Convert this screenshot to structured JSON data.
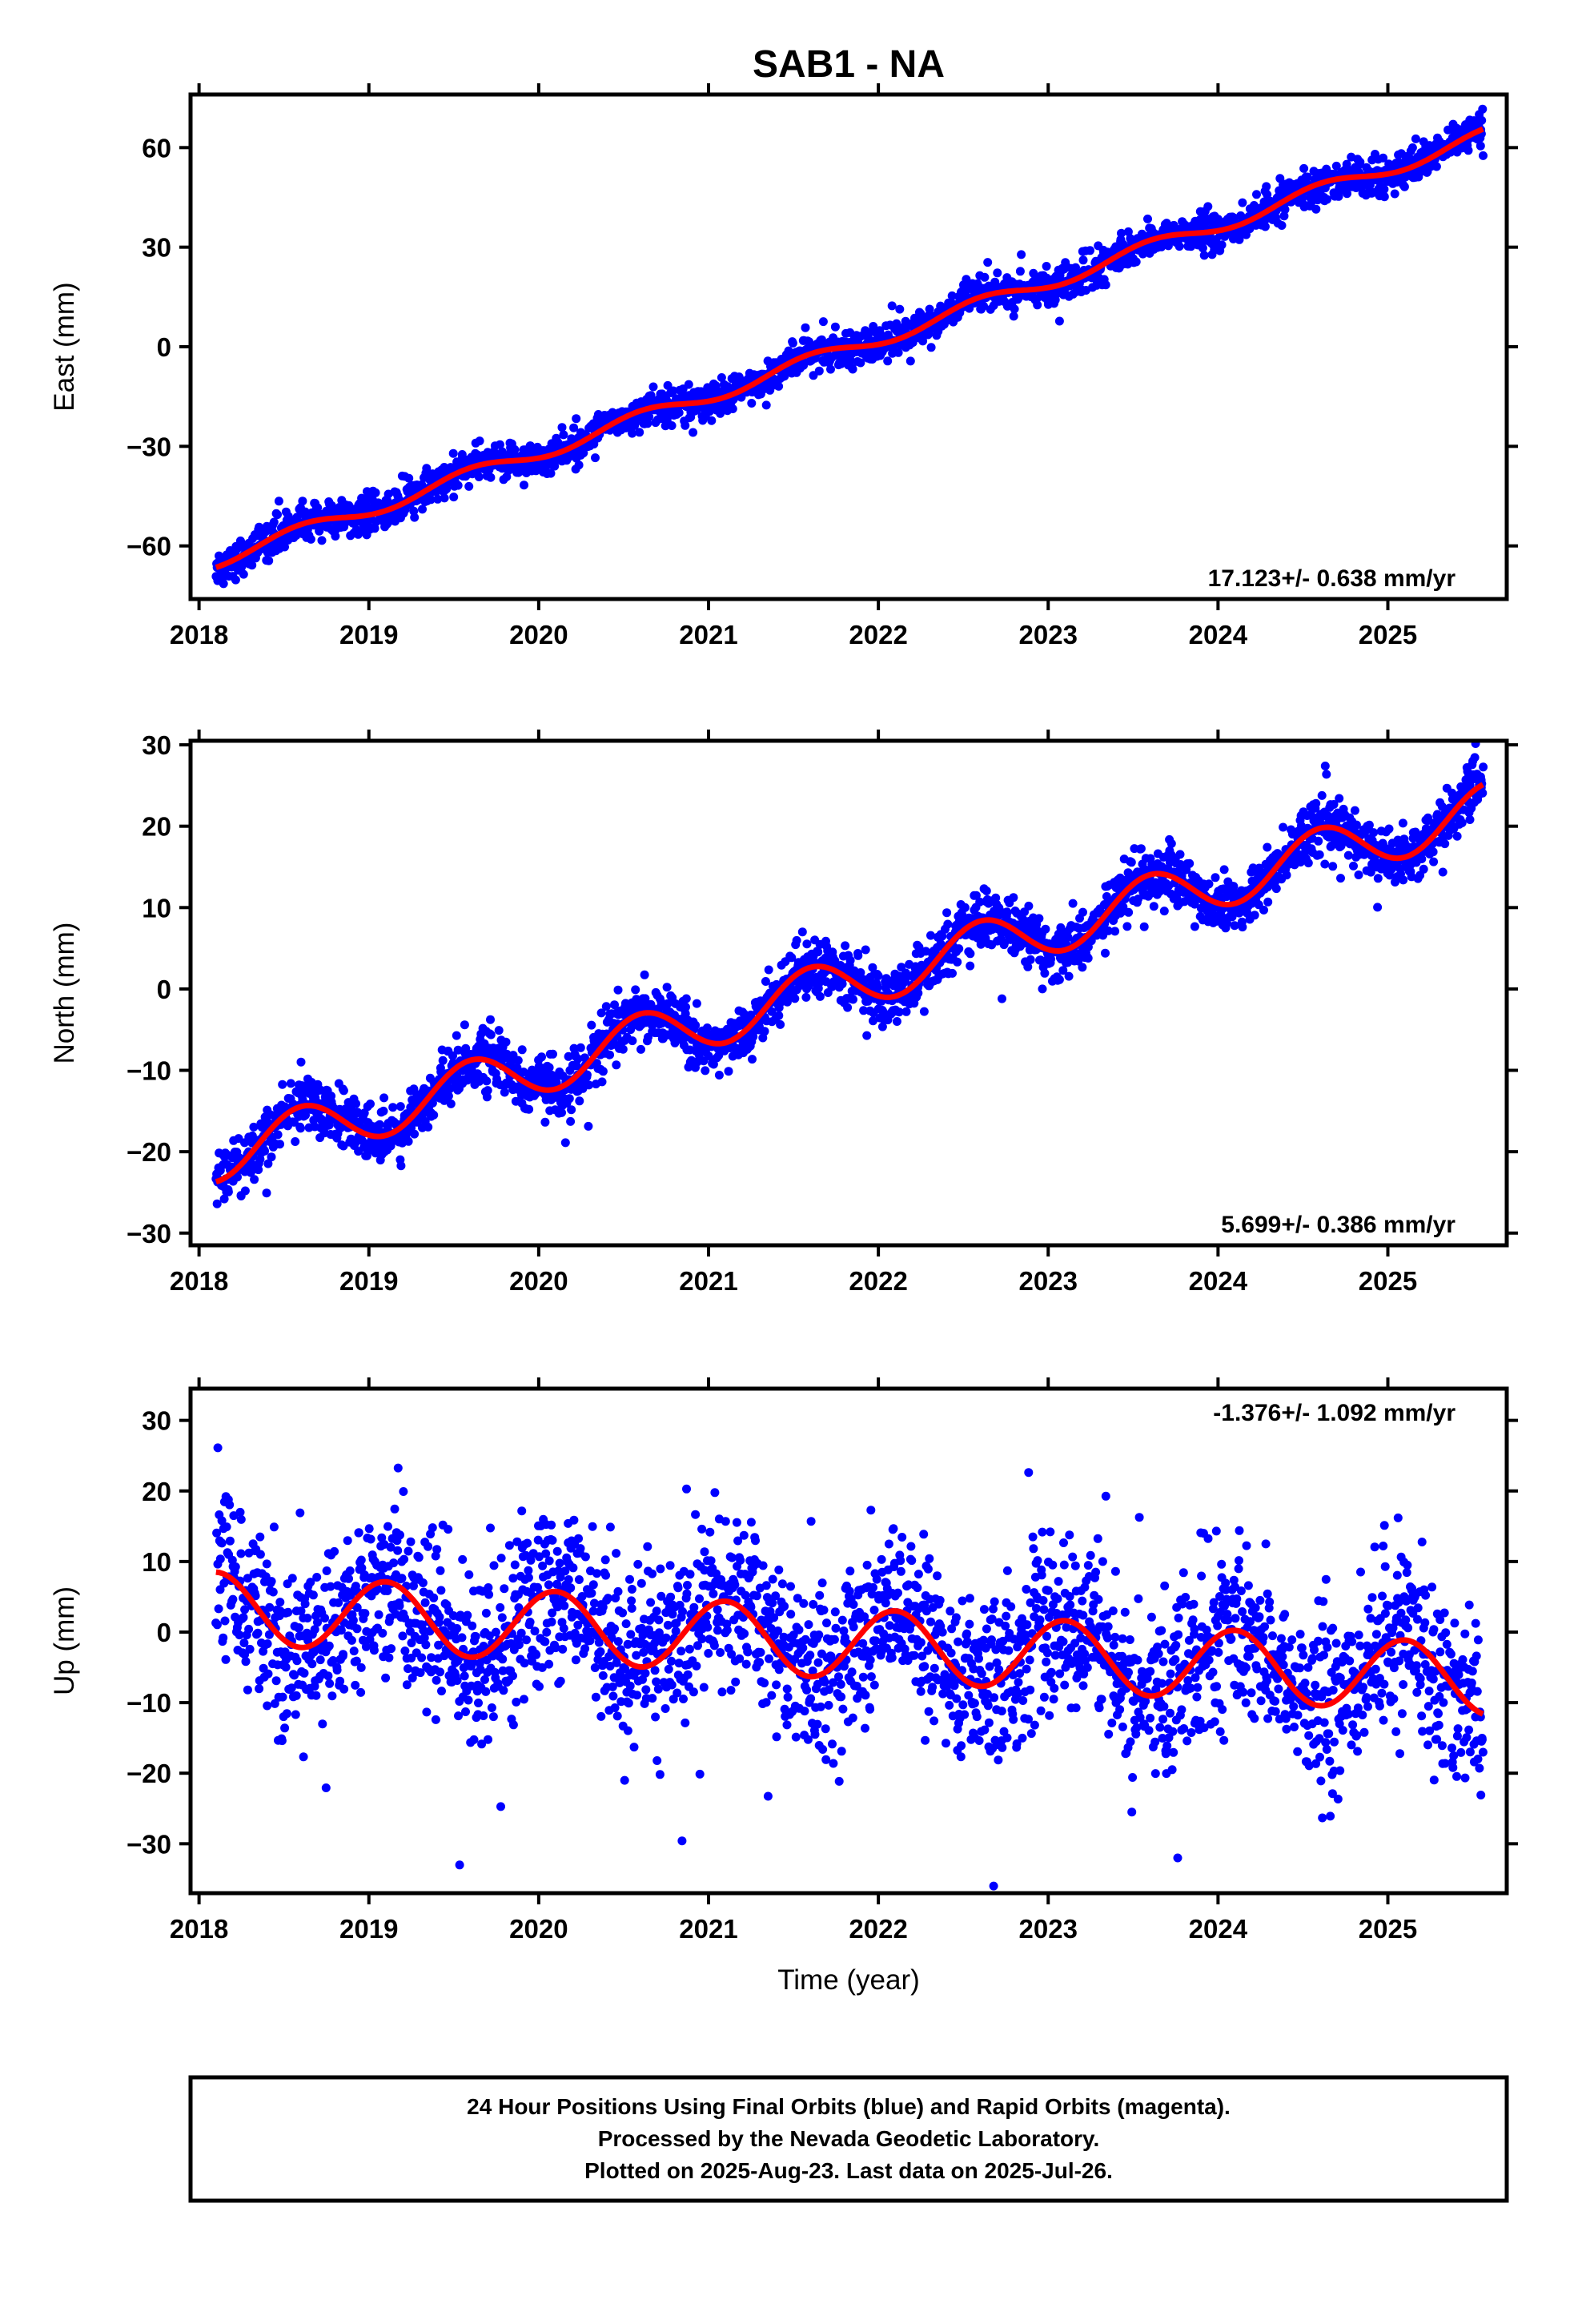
{
  "title": "SAB1 - NA",
  "colors": {
    "points": "#0000ff",
    "fit": "#ff0000",
    "frame": "#000000"
  },
  "caption": {
    "lines": [
      "24 Hour Positions Using Final Orbits (blue) and Rapid Orbits (magenta).",
      "Processed by the Nevada Geodetic Laboratory.",
      "Plotted on 2025-Aug-23. Last data on 2025-Jul-26."
    ]
  },
  "chart_data": [
    {
      "type": "scatter",
      "id": "east",
      "ylabel": "East (mm)",
      "xlabel": "",
      "xlim": [
        2017.95,
        2025.7
      ],
      "ylim": [
        -76,
        76
      ],
      "xticks": [
        2018,
        2019,
        2020,
        2021,
        2022,
        2023,
        2024,
        2025
      ],
      "yticks": [
        -60,
        -30,
        0,
        30,
        60
      ],
      "rate_label": "17.123+/- 0.638 mm/yr",
      "rate_position": "bottom-right",
      "trend": {
        "slope": 17.123,
        "intercept": -64.3,
        "ref_year": 2018.1
      },
      "seasonal": {
        "amplitude": 2.2,
        "period_years": 1.0,
        "phase_year": 2018.35
      },
      "noise_sd": 2.6,
      "time_range": [
        2018.1,
        2025.56
      ]
    },
    {
      "type": "scatter",
      "id": "north",
      "ylabel": "North (mm)",
      "xlabel": "",
      "xlim": [
        2017.95,
        2025.7
      ],
      "ylim": [
        -31.5,
        30.5
      ],
      "xticks": [
        2018,
        2019,
        2020,
        2021,
        2022,
        2023,
        2024,
        2025
      ],
      "yticks": [
        -30,
        -20,
        -10,
        0,
        10,
        20,
        30
      ],
      "rate_label": "5.699+/- 0.386 mm/yr",
      "rate_position": "bottom-right",
      "trend": {
        "slope": 5.699,
        "intercept": -20.5,
        "ref_year": 2018.1
      },
      "seasonal": {
        "amplitude": 3.2,
        "period_years": 1.0,
        "phase_year": 2018.35
      },
      "noise_sd": 1.7,
      "time_range": [
        2018.1,
        2025.56
      ]
    },
    {
      "type": "scatter",
      "id": "up",
      "ylabel": "Up (mm)",
      "xlabel": "Time (year)",
      "xlim": [
        2017.95,
        2025.7
      ],
      "ylim": [
        -37,
        34.5
      ],
      "xticks": [
        2018,
        2019,
        2020,
        2021,
        2022,
        2023,
        2024,
        2025
      ],
      "yticks": [
        -30,
        -20,
        -10,
        0,
        10,
        20,
        30
      ],
      "rate_label": "-1.376+/- 1.092 mm/yr",
      "rate_position": "top-right",
      "trend": {
        "slope": -1.376,
        "intercept": 3.5,
        "ref_year": 2018.1
      },
      "seasonal": {
        "amplitude": 5.0,
        "period_years": 1.0,
        "phase_year": 2017.85
      },
      "noise_sd": 6.0,
      "time_range": [
        2018.1,
        2025.56
      ]
    }
  ]
}
